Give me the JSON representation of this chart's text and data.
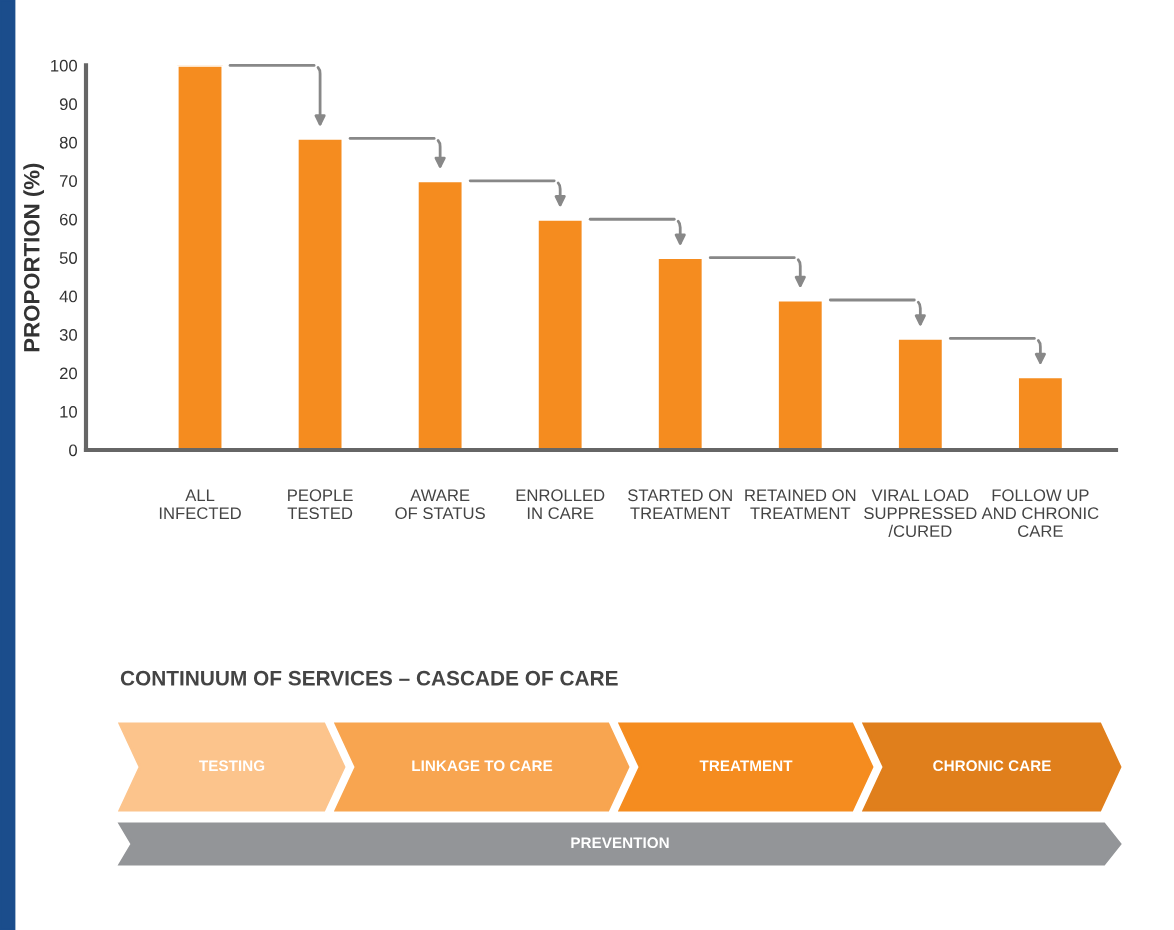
{
  "chart_data": {
    "type": "bar",
    "ylabel": "PROPORTION (%)",
    "categories": [
      "ALL\nINFECTED",
      "PEOPLE\nTESTED",
      "AWARE\nOF STATUS",
      "ENROLLED\nIN CARE",
      "STARTED ON\nTREATMENT",
      "RETAINED ON\nTREATMENT",
      "VIRAL LOAD\nSUPPRESSED\n/CURED",
      "FOLLOW UP\nAND CHRONIC\nCARE"
    ],
    "values": [
      100,
      81,
      70,
      60,
      50,
      39,
      29,
      19
    ],
    "color": "#f58c1f",
    "ylim": [
      0,
      100
    ],
    "yticks": [
      0,
      10,
      20,
      30,
      40,
      50,
      60,
      70,
      80,
      90,
      100
    ],
    "grid": false,
    "annotations": [
      "CONTINUUM OF SERVICES – CASCADE OF CARE",
      "TESTING",
      "LINKAGE TO CARE",
      "TREATMENT",
      "CHRONIC CARE",
      "PREVENTION"
    ]
  }
}
